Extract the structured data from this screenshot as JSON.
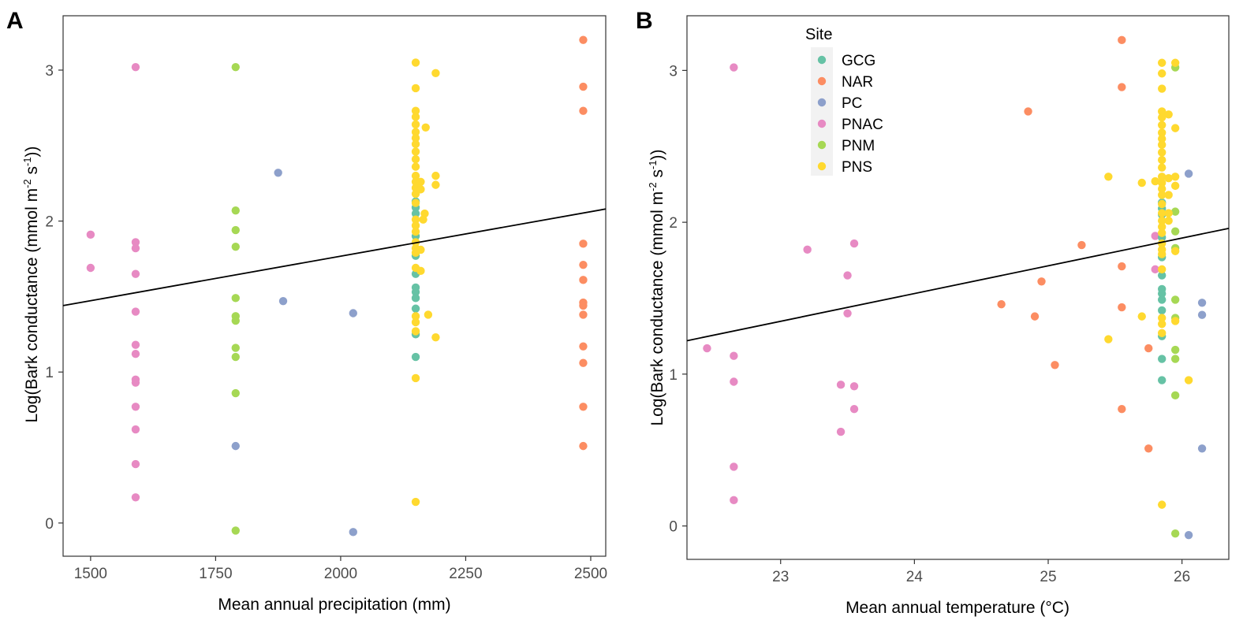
{
  "colors": {
    "GCG": "#66c2a5",
    "NAR": "#fc8d62",
    "PC": "#8da0cb",
    "PNAC": "#e78ac3",
    "PNM": "#a6d854",
    "PNS": "#ffd92f",
    "fit_line": "#000000"
  },
  "legend": {
    "title": "Site",
    "entries": [
      "GCG",
      "NAR",
      "PC",
      "PNAC",
      "PNM",
      "PNS"
    ]
  },
  "chart_data": [
    {
      "panel": "A",
      "type": "scatter",
      "xlabel": "Mean annual precipitation (mm)",
      "ylabel_parts": [
        "Log(Bark conductance (mmol m",
        "-2",
        " s",
        "-1",
        "))"
      ],
      "xlim": [
        1445,
        2530
      ],
      "ylim": [
        -0.22,
        3.36
      ],
      "xticks": [
        1500,
        1750,
        2000,
        2250,
        2500
      ],
      "yticks": [
        0,
        1,
        2,
        3
      ],
      "fit_line": {
        "x": [
          1445,
          2530
        ],
        "y": [
          1.44,
          2.08
        ]
      },
      "series": [
        {
          "name": "PNAC",
          "points": [
            [
              1500,
              1.91
            ],
            [
              1500,
              1.69
            ],
            [
              1590,
              3.02
            ],
            [
              1590,
              1.86
            ],
            [
              1590,
              1.82
            ],
            [
              1590,
              1.65
            ],
            [
              1590,
              1.4
            ],
            [
              1590,
              1.18
            ],
            [
              1590,
              1.12
            ],
            [
              1590,
              0.95
            ],
            [
              1590,
              0.93
            ],
            [
              1590,
              0.77
            ],
            [
              1590,
              0.62
            ],
            [
              1590,
              0.39
            ],
            [
              1590,
              0.17
            ]
          ]
        },
        {
          "name": "PNM",
          "points": [
            [
              1790,
              3.02
            ],
            [
              1790,
              2.07
            ],
            [
              1790,
              1.94
            ],
            [
              1790,
              1.83
            ],
            [
              1790,
              1.49
            ],
            [
              1790,
              1.37
            ],
            [
              1790,
              1.34
            ],
            [
              1790,
              1.16
            ],
            [
              1790,
              1.1
            ],
            [
              1790,
              0.86
            ],
            [
              1790,
              -0.05
            ]
          ]
        },
        {
          "name": "PC",
          "points": [
            [
              1875,
              2.32
            ],
            [
              1885,
              1.47
            ],
            [
              2025,
              1.39
            ],
            [
              1790,
              0.51
            ],
            [
              2025,
              -0.06
            ]
          ]
        },
        {
          "name": "GCG",
          "points": [
            [
              2150,
              2.13
            ],
            [
              2150,
              2.09
            ],
            [
              2150,
              2.05
            ],
            [
              2150,
              1.9
            ],
            [
              2150,
              1.77
            ],
            [
              2150,
              1.65
            ],
            [
              2150,
              1.56
            ],
            [
              2150,
              1.53
            ],
            [
              2150,
              1.49
            ],
            [
              2150,
              1.42
            ],
            [
              2150,
              1.25
            ],
            [
              2150,
              1.1
            ]
          ]
        },
        {
          "name": "NAR",
          "points": [
            [
              2485,
              3.2
            ],
            [
              2485,
              2.89
            ],
            [
              2485,
              2.73
            ],
            [
              2485,
              1.85
            ],
            [
              2485,
              1.71
            ],
            [
              2485,
              1.61
            ],
            [
              2485,
              1.46
            ],
            [
              2485,
              1.44
            ],
            [
              2485,
              1.38
            ],
            [
              2485,
              1.17
            ],
            [
              2485,
              1.06
            ],
            [
              2485,
              0.77
            ],
            [
              2485,
              0.51
            ]
          ]
        },
        {
          "name": "PNS",
          "points": [
            [
              2150,
              3.05
            ],
            [
              2150,
              2.88
            ],
            [
              2150,
              2.73
            ],
            [
              2150,
              2.69
            ],
            [
              2150,
              2.64
            ],
            [
              2150,
              2.59
            ],
            [
              2150,
              2.55
            ],
            [
              2150,
              2.51
            ],
            [
              2150,
              2.46
            ],
            [
              2150,
              2.41
            ],
            [
              2150,
              2.36
            ],
            [
              2150,
              2.3
            ],
            [
              2150,
              2.26
            ],
            [
              2150,
              2.22
            ],
            [
              2150,
              2.18
            ],
            [
              2150,
              2.12
            ],
            [
              2150,
              2.01
            ],
            [
              2150,
              1.97
            ],
            [
              2150,
              1.93
            ],
            [
              2150,
              1.86
            ],
            [
              2150,
              1.82
            ],
            [
              2150,
              1.79
            ],
            [
              2150,
              1.69
            ],
            [
              2150,
              1.37
            ],
            [
              2150,
              1.33
            ],
            [
              2150,
              1.27
            ],
            [
              2150,
              0.96
            ],
            [
              2150,
              0.14
            ],
            [
              2160,
              2.26
            ],
            [
              2160,
              2.21
            ],
            [
              2160,
              1.81
            ],
            [
              2160,
              1.67
            ],
            [
              2165,
              2.01
            ],
            [
              2168,
              2.05
            ],
            [
              2170,
              2.62
            ],
            [
              2175,
              1.38
            ],
            [
              2190,
              2.98
            ],
            [
              2190,
              2.3
            ],
            [
              2190,
              2.24
            ],
            [
              2190,
              1.23
            ]
          ]
        }
      ]
    },
    {
      "panel": "B",
      "type": "scatter",
      "xlabel": "Mean annual temperature (°C)",
      "ylabel_parts": [
        "Log(Bark conductance (mmol m",
        "-2",
        " s",
        "-1",
        "))"
      ],
      "xlim": [
        22.3,
        26.35
      ],
      "ylim": [
        -0.22,
        3.36
      ],
      "xticks": [
        23,
        24,
        25,
        26
      ],
      "yticks": [
        0,
        1,
        2,
        3
      ],
      "fit_line": {
        "x": [
          22.3,
          26.35
        ],
        "y": [
          1.22,
          1.96
        ]
      },
      "series": [
        {
          "name": "PNAC",
          "points": [
            [
              22.45,
              1.17
            ],
            [
              22.65,
              3.02
            ],
            [
              22.65,
              1.12
            ],
            [
              22.65,
              0.95
            ],
            [
              22.65,
              0.39
            ],
            [
              22.65,
              0.17
            ],
            [
              23.2,
              1.82
            ],
            [
              23.45,
              0.93
            ],
            [
              23.45,
              0.62
            ],
            [
              23.5,
              1.65
            ],
            [
              23.5,
              1.4
            ],
            [
              23.55,
              1.86
            ],
            [
              23.55,
              0.92
            ],
            [
              23.55,
              0.77
            ],
            [
              25.8,
              1.91
            ],
            [
              25.8,
              1.69
            ]
          ]
        },
        {
          "name": "NAR",
          "points": [
            [
              24.65,
              1.46
            ],
            [
              24.85,
              2.73
            ],
            [
              24.9,
              1.38
            ],
            [
              24.95,
              1.61
            ],
            [
              25.05,
              1.06
            ],
            [
              25.25,
              1.85
            ],
            [
              25.55,
              3.2
            ],
            [
              25.55,
              2.89
            ],
            [
              25.55,
              1.71
            ],
            [
              25.55,
              1.44
            ],
            [
              25.55,
              0.77
            ],
            [
              25.75,
              1.17
            ],
            [
              25.75,
              0.51
            ]
          ]
        },
        {
          "name": "GCG",
          "points": [
            [
              25.85,
              2.13
            ],
            [
              25.85,
              2.09
            ],
            [
              25.85,
              2.05
            ],
            [
              25.85,
              1.9
            ],
            [
              25.85,
              1.77
            ],
            [
              25.85,
              1.65
            ],
            [
              25.85,
              1.56
            ],
            [
              25.85,
              1.53
            ],
            [
              25.85,
              1.49
            ],
            [
              25.85,
              1.42
            ],
            [
              25.85,
              1.25
            ],
            [
              25.85,
              1.1
            ],
            [
              25.85,
              0.96
            ]
          ]
        },
        {
          "name": "PNM",
          "points": [
            [
              25.95,
              3.02
            ],
            [
              25.95,
              2.07
            ],
            [
              25.95,
              1.94
            ],
            [
              25.95,
              1.83
            ],
            [
              25.95,
              1.49
            ],
            [
              25.95,
              1.37
            ],
            [
              25.95,
              1.16
            ],
            [
              25.95,
              1.1
            ],
            [
              25.95,
              0.86
            ],
            [
              25.95,
              -0.05
            ]
          ]
        },
        {
          "name": "PC",
          "points": [
            [
              26.05,
              2.32
            ],
            [
              26.15,
              1.47
            ],
            [
              26.15,
              1.39
            ],
            [
              26.15,
              0.51
            ],
            [
              26.05,
              -0.06
            ]
          ]
        },
        {
          "name": "PNS",
          "points": [
            [
              25.45,
              2.3
            ],
            [
              25.45,
              1.23
            ],
            [
              25.7,
              2.26
            ],
            [
              25.7,
              1.38
            ],
            [
              25.8,
              2.27
            ],
            [
              25.85,
              3.05
            ],
            [
              25.85,
              2.98
            ],
            [
              25.85,
              2.88
            ],
            [
              25.85,
              2.73
            ],
            [
              25.85,
              2.69
            ],
            [
              25.85,
              2.64
            ],
            [
              25.85,
              2.59
            ],
            [
              25.85,
              2.55
            ],
            [
              25.85,
              2.51
            ],
            [
              25.85,
              2.46
            ],
            [
              25.85,
              2.41
            ],
            [
              25.85,
              2.36
            ],
            [
              25.85,
              2.3
            ],
            [
              25.85,
              2.26
            ],
            [
              25.85,
              2.22
            ],
            [
              25.85,
              2.18
            ],
            [
              25.85,
              2.12
            ],
            [
              25.85,
              2.06
            ],
            [
              25.85,
              2.01
            ],
            [
              25.85,
              1.97
            ],
            [
              25.85,
              1.93
            ],
            [
              25.85,
              1.86
            ],
            [
              25.85,
              1.82
            ],
            [
              25.85,
              1.79
            ],
            [
              25.85,
              1.69
            ],
            [
              25.85,
              1.37
            ],
            [
              25.85,
              1.33
            ],
            [
              25.85,
              1.27
            ],
            [
              25.85,
              0.14
            ],
            [
              25.9,
              2.71
            ],
            [
              25.9,
              2.29
            ],
            [
              25.9,
              2.18
            ],
            [
              25.9,
              2.06
            ],
            [
              25.9,
              2.01
            ],
            [
              25.95,
              3.05
            ],
            [
              25.95,
              2.62
            ],
            [
              25.95,
              2.3
            ],
            [
              25.95,
              2.24
            ],
            [
              25.95,
              1.81
            ],
            [
              25.95,
              1.35
            ],
            [
              26.05,
              0.96
            ]
          ]
        }
      ]
    }
  ]
}
